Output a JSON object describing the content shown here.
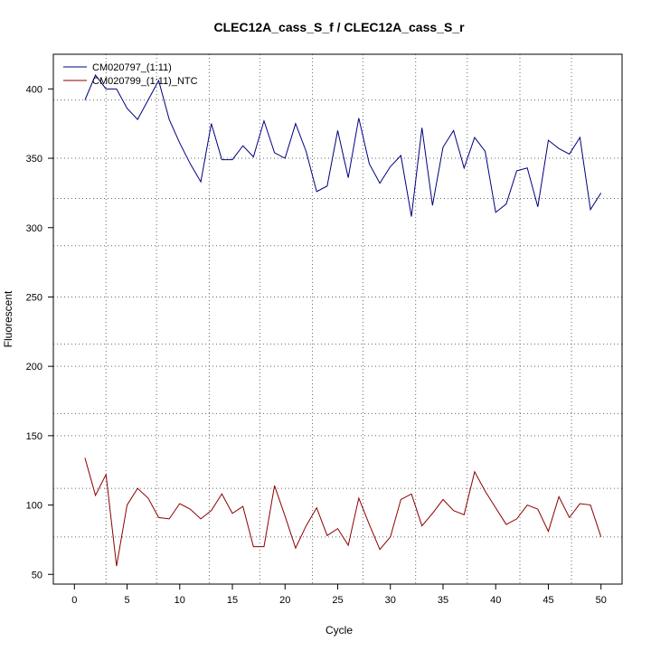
{
  "chart_data": {
    "type": "line",
    "title": "CLEC12A_cass_S_f / CLEC12A_cass_S_r",
    "xlabel": "Cycle",
    "ylabel": "Fluorescent",
    "xlim": [
      -2,
      52
    ],
    "ylim": [
      43,
      425
    ],
    "x_ticks": [
      "0",
      "5",
      "10",
      "15",
      "20",
      "25",
      "30",
      "35",
      "40",
      "45",
      "50"
    ],
    "x_tick_values": [
      0,
      5,
      10,
      15,
      20,
      25,
      30,
      35,
      40,
      45,
      50
    ],
    "y_ticks": [
      "50",
      "100",
      "150",
      "200",
      "250",
      "300",
      "350",
      "400"
    ],
    "y_tick_values": [
      50,
      100,
      150,
      200,
      250,
      300,
      350,
      400
    ],
    "grid": true,
    "vertical_dotted_lines": [
      3,
      7.8,
      12.8,
      17.6,
      22.6,
      27.4,
      32.4,
      37.3,
      42.3,
      47.2
    ],
    "horizontal_dotted_lines": [
      77,
      112,
      150,
      166,
      200,
      216,
      250,
      287,
      321,
      350,
      392
    ],
    "legend_position": "top-left",
    "x": [
      1,
      2,
      3,
      4,
      5,
      6,
      7,
      8,
      9,
      10,
      11,
      12,
      13,
      14,
      15,
      16,
      17,
      18,
      19,
      20,
      21,
      22,
      23,
      24,
      25,
      26,
      27,
      28,
      29,
      30,
      31,
      32,
      33,
      34,
      35,
      36,
      37,
      38,
      39,
      40,
      41,
      42,
      43,
      44,
      45,
      46,
      47,
      48,
      49,
      50
    ],
    "series": [
      {
        "name": "CM020797_(1:11)",
        "color": "#00007f",
        "values": [
          392,
          410,
          400,
          400,
          386,
          378,
          392,
          406,
          378,
          361,
          346,
          333,
          375,
          349,
          349,
          359,
          351,
          377,
          354,
          350,
          375,
          355,
          326,
          330,
          370,
          336,
          379,
          346,
          332,
          344,
          352,
          308,
          372,
          316,
          358,
          370,
          343,
          365,
          355,
          311,
          317,
          341,
          343,
          315,
          363,
          357,
          353,
          365,
          313,
          325
        ]
      },
      {
        "name": "CM020799_(1:11)_NTC",
        "color": "#8b0000",
        "values": [
          134,
          107,
          122,
          56,
          100,
          112,
          105,
          91,
          90,
          101,
          97,
          90,
          96,
          108,
          94,
          99,
          70,
          70,
          114,
          92,
          69,
          85,
          98,
          78,
          83,
          71,
          105,
          86,
          68,
          77,
          104,
          108,
          85,
          94,
          104,
          96,
          93,
          124,
          110,
          98,
          86,
          90,
          100,
          97,
          81,
          106,
          91,
          101,
          100,
          77
        ]
      }
    ]
  }
}
